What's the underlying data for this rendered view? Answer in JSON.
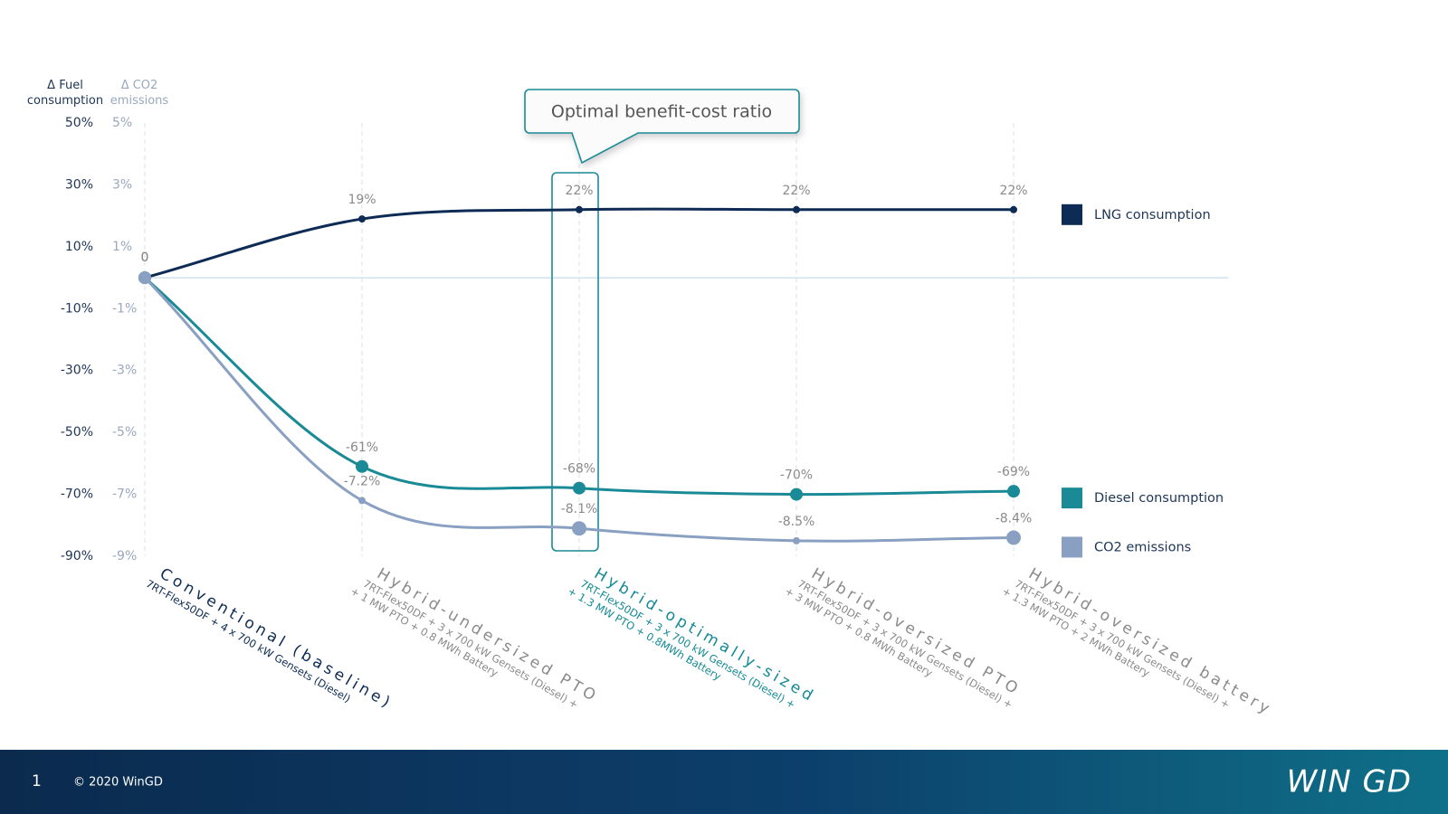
{
  "chart_data": {
    "type": "line",
    "y_label": "Δ Fuel consumption",
    "y2_label": "Δ CO2 emissions",
    "categories": [
      "Conventional (baseline)",
      "Hybrid-undersized PTO",
      "Hybrid-optimally-sized",
      "Hybrid-oversized PTO",
      "Hybrid-oversized battery"
    ],
    "category_details": [
      [
        "7RT-Flex50DF + 4 x 700 kW Gensets (Diesel)"
      ],
      [
        "7RT-Flex50DF + 3 x 700 kW Gensets (Diesel) +",
        "+ 1 MW PTO + 0.8 MWh Battery"
      ],
      [
        "7RT-Flex50DF + 3 x 700 kW Gensets (Diesel) +",
        "+ 1.3 MW PTO + 0.8MWh Battery"
      ],
      [
        "7RT-Flex50DF + 3 x 700 kW Gensets (Diesel) +",
        "+ 3 MW PTO + 0.8 MWh Battery"
      ],
      [
        "7RT-Flex50DF + 3 x 700 kW Gensets (Diesel) +",
        "+ 1.3 MW PTO + 2 MWh Battery"
      ]
    ],
    "series": [
      {
        "name": "LNG consumption",
        "color": "#0d2b55",
        "values": [
          0,
          19,
          22,
          22,
          22
        ],
        "value_labels": [
          "0",
          "19%",
          "22%",
          "22%",
          "22%"
        ]
      },
      {
        "name": "Diesel  consumption",
        "color": "#1a8a96",
        "values": [
          0,
          -61,
          -68,
          -70,
          -69
        ],
        "value_labels": [
          "0",
          "-61%",
          "-68%",
          "-70%",
          "-69%"
        ]
      },
      {
        "name": "CO2 emissions",
        "color": "#8aa0c2",
        "axis": "y2",
        "values": [
          0,
          -7.2,
          -8.1,
          -8.5,
          -8.4
        ],
        "value_labels": [
          "0",
          "-7.2%",
          "-8.1%",
          "-8.5%",
          "-8.4%"
        ]
      }
    ],
    "ylim": [
      -90,
      50
    ],
    "yticks": [
      {
        "value": 50,
        "label": "50%"
      },
      {
        "value": 30,
        "label": "30%"
      },
      {
        "value": 10,
        "label": "10%"
      },
      {
        "value": -10,
        "label": "-10%"
      },
      {
        "value": -30,
        "label": "-30%"
      },
      {
        "value": -50,
        "label": "-50%"
      },
      {
        "value": -70,
        "label": "-70%"
      },
      {
        "value": -90,
        "label": "-90%"
      }
    ],
    "y2lim": [
      -9,
      5
    ],
    "y2ticks": [
      {
        "value": 5,
        "label": "5%"
      },
      {
        "value": 3,
        "label": "3%"
      },
      {
        "value": 1,
        "label": "1%"
      },
      {
        "value": -1,
        "label": "-1%"
      },
      {
        "value": -3,
        "label": "-3%"
      },
      {
        "value": -5,
        "label": "-5%"
      },
      {
        "value": -7,
        "label": "-7%"
      },
      {
        "value": -9,
        "label": "-9%"
      }
    ],
    "annotation": {
      "text": "Optimal benefit-cost ratio",
      "category": 2
    },
    "legend": "right"
  },
  "footer": {
    "page": "1",
    "copyright": "© 2020 WinGD",
    "logo": "WIN GD"
  }
}
